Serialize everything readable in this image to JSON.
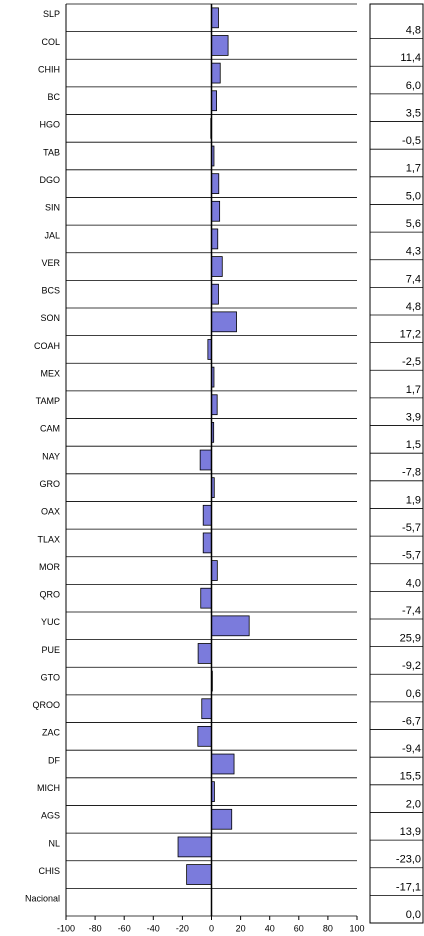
{
  "chart_data": {
    "type": "barh",
    "categories": [
      "SLP",
      "COL",
      "CHIH",
      "BC",
      "HGO",
      "TAB",
      "DGO",
      "SIN",
      "JAL",
      "VER",
      "BCS",
      "SON",
      "COAH",
      "MEX",
      "TAMP",
      "CAM",
      "NAY",
      "GRO",
      "OAX",
      "TLAX",
      "MOR",
      "QRO",
      "YUC",
      "PUE",
      "GTO",
      "QROO",
      "ZAC",
      "DF",
      "MICH",
      "AGS",
      "NL",
      "CHIS",
      "Nacional"
    ],
    "values": [
      4.8,
      11.4,
      6.0,
      3.5,
      -0.5,
      1.7,
      5.0,
      5.6,
      4.3,
      7.4,
      4.8,
      17.2,
      -2.5,
      1.7,
      3.9,
      1.5,
      -7.8,
      1.9,
      -5.7,
      -5.7,
      4.0,
      -7.4,
      25.9,
      -9.2,
      0.6,
      -6.7,
      -9.4,
      15.5,
      2.0,
      13.9,
      -23.0,
      -17.1,
      0.0
    ],
    "value_labels": [
      "4,8",
      "11,4",
      "6,0",
      "3,5",
      "-0,5",
      "1,7",
      "5,0",
      "5,6",
      "4,3",
      "7,4",
      "4,8",
      "17,2",
      "-2,5",
      "1,7",
      "3,9",
      "1,5",
      "-7,8",
      "1,9",
      "-5,7",
      "-5,7",
      "4,0",
      "-7,4",
      "25,9",
      "-9,2",
      "0,6",
      "-6,7",
      "-9,4",
      "15,5",
      "2,0",
      "13,9",
      "-23,0",
      "-17,1",
      "0,0"
    ],
    "color": "#7b7bdc",
    "xlim": [
      -100,
      100
    ],
    "xticks": [
      -100,
      -80,
      -60,
      -40,
      -20,
      0,
      20,
      40,
      60,
      80,
      100
    ],
    "grid": true
  }
}
